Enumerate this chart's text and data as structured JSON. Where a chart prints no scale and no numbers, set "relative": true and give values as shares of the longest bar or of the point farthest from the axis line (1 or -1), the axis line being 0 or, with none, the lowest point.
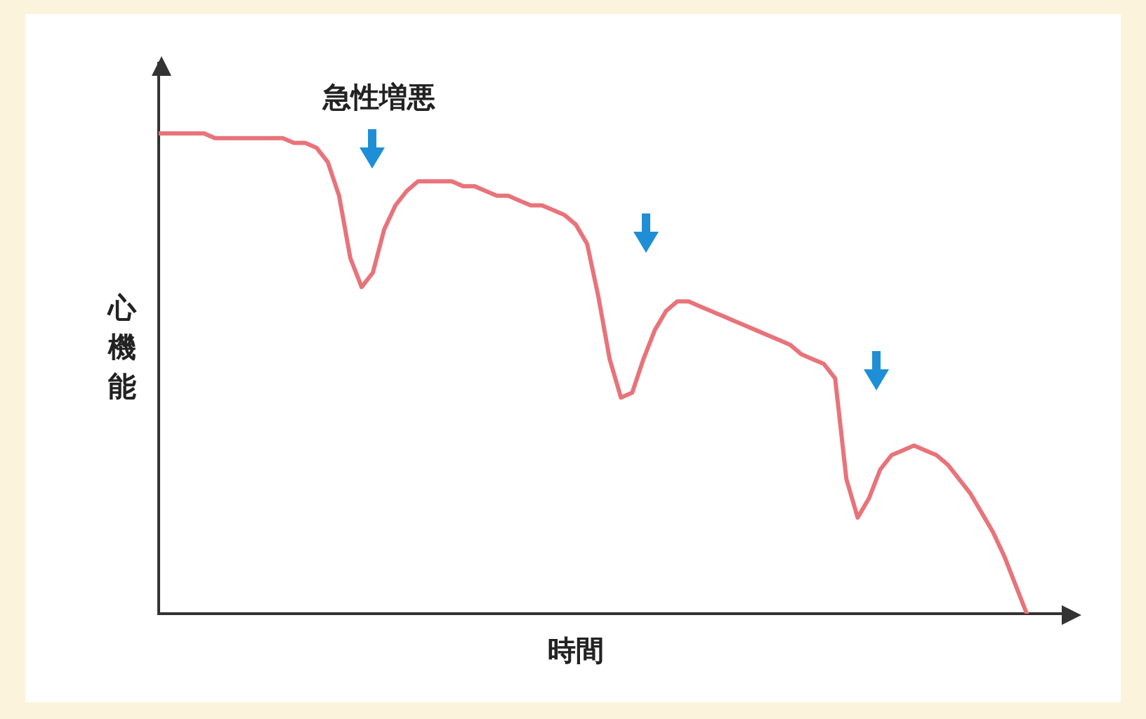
{
  "chart_data": {
    "type": "line",
    "relative": true,
    "xlabel": "時間",
    "ylabel": "心機能",
    "annotations": [
      "急性増悪"
    ],
    "color": "#e8737a",
    "grid": false,
    "legend": false,
    "marker": "none",
    "line_style": "solid",
    "categories": [
      null,
      null,
      null,
      null,
      null,
      null,
      null,
      null,
      null,
      null,
      null,
      null,
      null,
      null,
      null,
      null,
      null,
      null,
      null,
      null,
      null,
      null,
      null,
      null,
      null,
      null,
      null,
      null,
      null,
      null,
      null,
      null,
      null,
      null,
      null,
      null,
      null,
      null,
      null,
      null,
      null,
      null,
      null,
      null,
      null,
      null,
      null,
      null,
      null,
      null,
      null,
      null,
      null,
      null,
      null,
      null,
      null,
      null,
      null,
      null,
      null,
      null,
      null,
      null,
      null,
      null,
      null,
      null,
      null,
      null,
      null,
      null,
      null,
      null,
      null,
      null,
      null,
      null
    ],
    "values": [
      1.0,
      1.0,
      1.0,
      1.0,
      1.0,
      0.99,
      0.99,
      0.99,
      0.99,
      0.99,
      0.99,
      0.99,
      0.98,
      0.98,
      0.97,
      0.94,
      0.87,
      0.74,
      0.68,
      0.71,
      0.8,
      0.85,
      0.88,
      0.9,
      0.9,
      0.9,
      0.9,
      0.89,
      0.89,
      0.88,
      0.87,
      0.87,
      0.86,
      0.85,
      0.85,
      0.84,
      0.83,
      0.81,
      0.77,
      0.66,
      0.53,
      0.45,
      0.46,
      0.53,
      0.59,
      0.63,
      0.65,
      0.65,
      0.64,
      0.63,
      0.62,
      0.61,
      0.6,
      0.59,
      0.58,
      0.57,
      0.56,
      0.54,
      0.53,
      0.52,
      0.49,
      0.28,
      0.2,
      0.24,
      0.3,
      0.33,
      0.34,
      0.35,
      0.34,
      0.33,
      0.31,
      0.28,
      0.25,
      0.21,
      0.17,
      0.12,
      0.06,
      0.0
    ]
  }
}
